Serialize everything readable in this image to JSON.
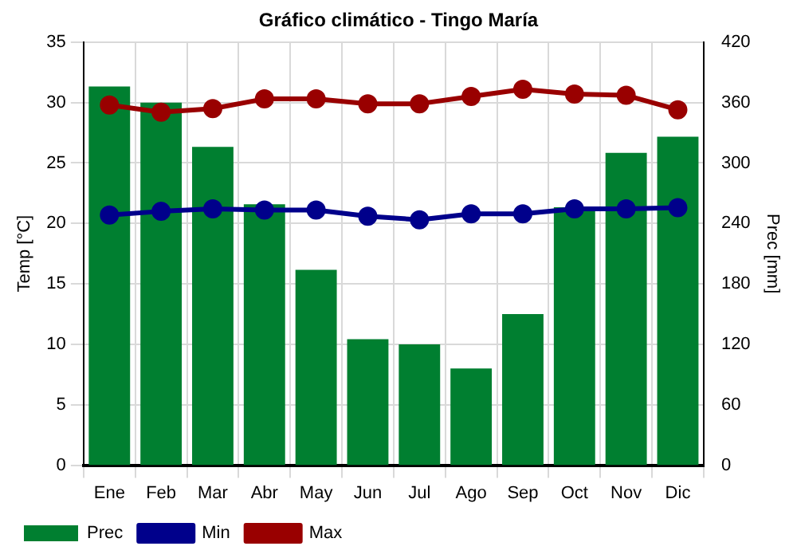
{
  "chart_data": {
    "type": "bar",
    "title": "Gráfico climático - Tingo María",
    "ylabel": "Temp [°C]",
    "y2label": "Prec [mm]",
    "categories": [
      "Ene",
      "Feb",
      "Mar",
      "Abr",
      "May",
      "Jun",
      "Jul",
      "Ago",
      "Sep",
      "Oct",
      "Nov",
      "Dic"
    ],
    "series": [
      {
        "name": "Prec",
        "axis": "y2",
        "color": "#007f30",
        "values": [
          376,
          360,
          316,
          259,
          194,
          125,
          120,
          96,
          150,
          256,
          310,
          326
        ]
      },
      {
        "name": "Min",
        "type": "line",
        "color": "#00008b",
        "values": [
          20.7,
          21.0,
          21.2,
          21.1,
          21.1,
          20.6,
          20.3,
          20.8,
          20.8,
          21.2,
          21.2,
          21.3
        ]
      },
      {
        "name": "Max",
        "type": "line",
        "color": "#990000",
        "values": [
          29.8,
          29.2,
          29.5,
          30.3,
          30.3,
          29.9,
          29.9,
          30.5,
          31.1,
          30.7,
          30.6,
          29.4
        ]
      }
    ],
    "ylim": [
      0,
      35
    ],
    "yticks": [
      0,
      5,
      10,
      15,
      20,
      25,
      30,
      35
    ],
    "y2lim": [
      0,
      420
    ],
    "y2ticks": [
      0,
      60,
      120,
      180,
      240,
      300,
      360,
      420
    ],
    "grid": true,
    "legend": "bottom",
    "marker": "circle",
    "line_style": "solid"
  }
}
